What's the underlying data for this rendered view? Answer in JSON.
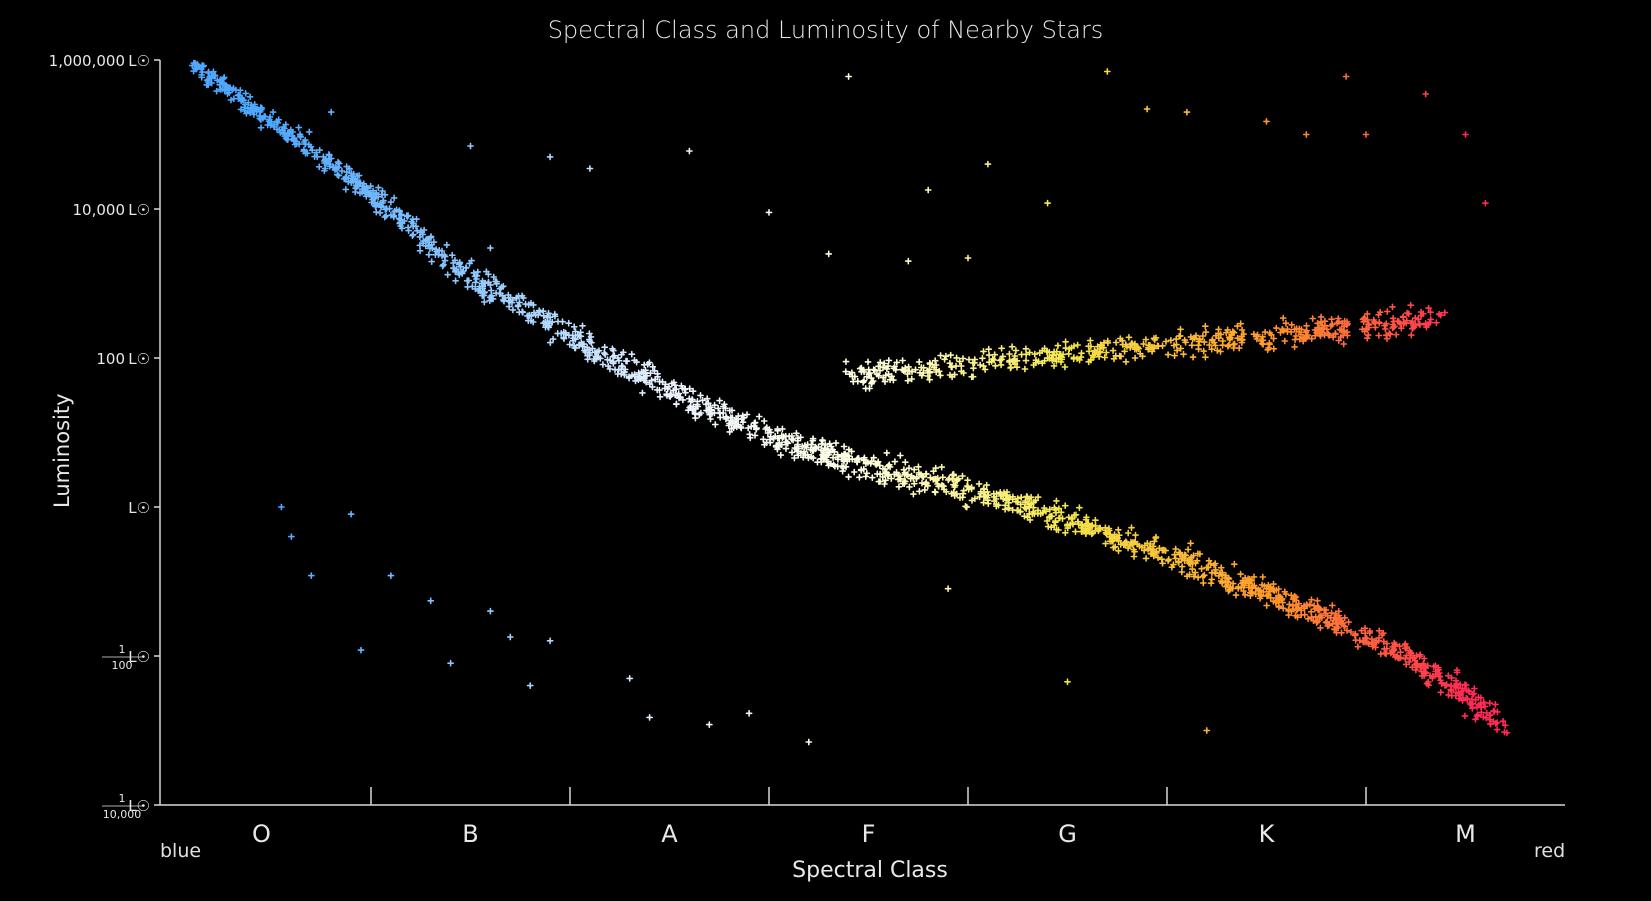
{
  "chart_data": {
    "type": "scatter",
    "title": "Spectral Class and Luminosity of Nearby Stars",
    "xlabel": "Spectral Class",
    "ylabel": "Luminosity",
    "x_edge_labels": {
      "left": "blue",
      "right": "red"
    },
    "categories": [
      "O",
      "B",
      "A",
      "F",
      "G",
      "K",
      "M"
    ],
    "y_scale": "log",
    "ylim": [
      0.0001,
      1000000
    ],
    "y_ticks": [
      {
        "value": 1000000,
        "label": "1,000,000",
        "unit": "L☉"
      },
      {
        "value": 10000,
        "label": "10,000",
        "unit": "L☉"
      },
      {
        "value": 100,
        "label": "100",
        "unit": "L☉"
      },
      {
        "value": 1,
        "label": "",
        "unit": "L☉"
      },
      {
        "value": 0.01,
        "label": "1/100",
        "numerator": "1",
        "denominator": "100",
        "unit": "L☉"
      },
      {
        "value": 0.0001,
        "label": "1/10,000",
        "numerator": "1",
        "denominator": "10,000",
        "unit": "L☉"
      }
    ],
    "grid": false,
    "x_position_note": "x is position along spectral sequence: 0 = start of O band, each class spans 1 unit (0..7)",
    "main_sequence_trend": [
      {
        "x": 0.1,
        "y": 900000
      },
      {
        "x": 0.5,
        "y": 150000
      },
      {
        "x": 0.9,
        "y": 25000
      },
      {
        "x": 1.2,
        "y": 6000
      },
      {
        "x": 1.5,
        "y": 1200
      },
      {
        "x": 1.9,
        "y": 280
      },
      {
        "x": 2.3,
        "y": 70
      },
      {
        "x": 2.7,
        "y": 20
      },
      {
        "x": 3.1,
        "y": 7
      },
      {
        "x": 3.5,
        "y": 3.5
      },
      {
        "x": 3.9,
        "y": 2.0
      },
      {
        "x": 4.3,
        "y": 1.0
      },
      {
        "x": 4.7,
        "y": 0.45
      },
      {
        "x": 5.1,
        "y": 0.18
      },
      {
        "x": 5.5,
        "y": 0.07
      },
      {
        "x": 5.9,
        "y": 0.025
      },
      {
        "x": 6.2,
        "y": 0.01
      },
      {
        "x": 6.5,
        "y": 0.003
      },
      {
        "x": 6.7,
        "y": 0.0012
      }
    ],
    "giant_branch_trend": [
      {
        "x": 3.4,
        "y": 60
      },
      {
        "x": 3.8,
        "y": 75
      },
      {
        "x": 4.2,
        "y": 100
      },
      {
        "x": 4.6,
        "y": 120
      },
      {
        "x": 5.0,
        "y": 150
      },
      {
        "x": 5.4,
        "y": 190
      },
      {
        "x": 5.8,
        "y": 240
      },
      {
        "x": 6.2,
        "y": 320
      },
      {
        "x": 6.4,
        "y": 380
      }
    ],
    "supergiants": [
      {
        "x": 0.8,
        "y": 200000
      },
      {
        "x": 1.5,
        "y": 70000
      },
      {
        "x": 1.9,
        "y": 50000
      },
      {
        "x": 2.1,
        "y": 35000
      },
      {
        "x": 2.6,
        "y": 60000
      },
      {
        "x": 3.4,
        "y": 600000
      },
      {
        "x": 3.0,
        "y": 9000
      },
      {
        "x": 3.8,
        "y": 18000
      },
      {
        "x": 4.1,
        "y": 40000
      },
      {
        "x": 4.4,
        "y": 12000
      },
      {
        "x": 4.7,
        "y": 700000
      },
      {
        "x": 4.9,
        "y": 220000
      },
      {
        "x": 5.1,
        "y": 200000
      },
      {
        "x": 5.5,
        "y": 150000
      },
      {
        "x": 5.7,
        "y": 100000
      },
      {
        "x": 5.9,
        "y": 600000
      },
      {
        "x": 6.0,
        "y": 100000
      },
      {
        "x": 6.3,
        "y": 350000
      },
      {
        "x": 6.5,
        "y": 100000
      },
      {
        "x": 6.6,
        "y": 12000
      },
      {
        "x": 1.6,
        "y": 3000
      },
      {
        "x": 3.3,
        "y": 2500
      },
      {
        "x": 3.7,
        "y": 2000
      },
      {
        "x": 4.0,
        "y": 2200
      }
    ],
    "white_dwarfs": [
      {
        "x": 0.6,
        "y": 0.4
      },
      {
        "x": 0.55,
        "y": 1.0
      },
      {
        "x": 0.9,
        "y": 0.8
      },
      {
        "x": 0.7,
        "y": 0.12
      },
      {
        "x": 0.95,
        "y": 0.012
      },
      {
        "x": 1.1,
        "y": 0.12
      },
      {
        "x": 1.3,
        "y": 0.055
      },
      {
        "x": 1.4,
        "y": 0.008
      },
      {
        "x": 1.6,
        "y": 0.04
      },
      {
        "x": 1.7,
        "y": 0.018
      },
      {
        "x": 1.8,
        "y": 0.004
      },
      {
        "x": 1.9,
        "y": 0.016
      },
      {
        "x": 2.3,
        "y": 0.005
      },
      {
        "x": 2.4,
        "y": 0.0015
      },
      {
        "x": 2.7,
        "y": 0.0012
      },
      {
        "x": 2.9,
        "y": 0.0017
      },
      {
        "x": 3.2,
        "y": 0.0007
      },
      {
        "x": 3.9,
        "y": 0.08
      },
      {
        "x": 4.5,
        "y": 0.0045
      },
      {
        "x": 5.2,
        "y": 0.001
      }
    ],
    "colors": {
      "background": "#000000",
      "axis": "#d8d8d8",
      "text": "#e8e8e8",
      "O": "#4fa8ff",
      "B": "#8ec8ff",
      "A": "#eaf2ff",
      "F": "#ffffe0",
      "G": "#f4e64a",
      "K": "#ff9a2a",
      "M": "#ff2a55"
    }
  }
}
